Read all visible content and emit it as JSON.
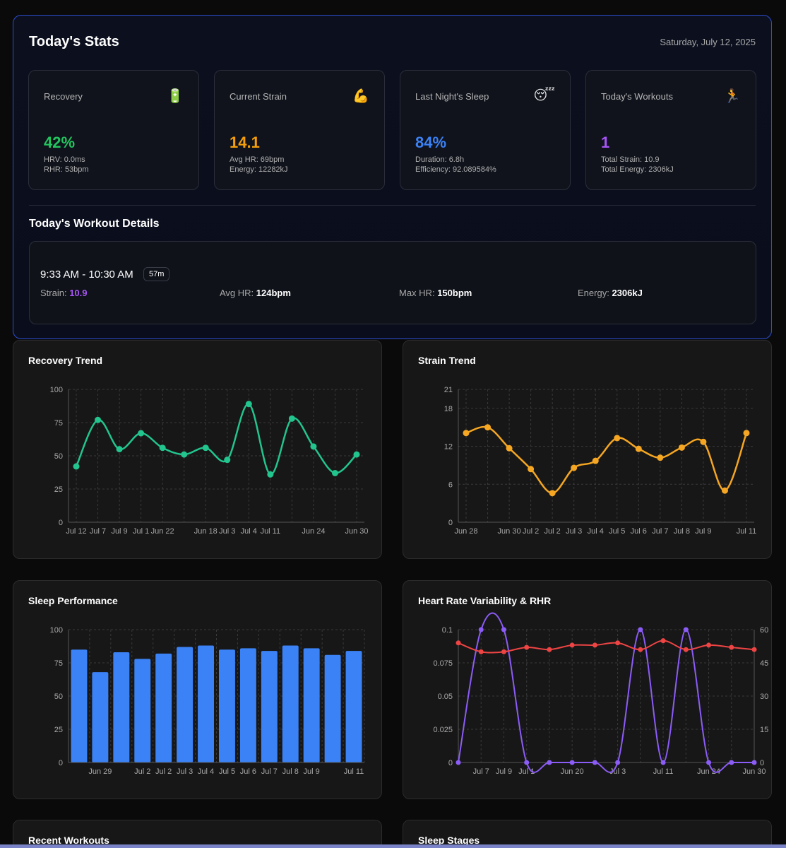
{
  "today": {
    "title": "Today's Stats",
    "date": "Saturday, July 12, 2025",
    "cards": [
      {
        "label": "Recovery",
        "icon": "🔋",
        "icon_name": "battery-icon",
        "value": "42%",
        "color": "#22c55e",
        "sub1": "HRV: 0.0ms",
        "sub2": "RHR: 53bpm"
      },
      {
        "label": "Current Strain",
        "icon": "💪",
        "icon_name": "flexed-biceps-icon",
        "value": "14.1",
        "color": "#f59e0b",
        "sub1": "Avg HR: 69bpm",
        "sub2": "Energy: 12282kJ"
      },
      {
        "label": "Last Night's Sleep",
        "icon": "😴",
        "icon_name": "sleeping-face-icon",
        "value": "84%",
        "color": "#3b82f6",
        "sub1": "Duration: 6.8h",
        "sub2": "Efficiency: 92.089584%"
      },
      {
        "label": "Today's Workouts",
        "icon": "🏃",
        "icon_name": "runner-icon",
        "value": "1",
        "color": "#a855f7",
        "sub1": "Total Strain: 10.9",
        "sub2": "Total Energy: 2306kJ"
      }
    ],
    "workout_details": {
      "title": "Today's Workout Details",
      "time": "9:33 AM - 10:30 AM",
      "duration": "57m",
      "strain_label": "Strain:",
      "strain": "10.9",
      "avg_hr_label": "Avg HR:",
      "avg_hr": "124bpm",
      "max_hr_label": "Max HR:",
      "max_hr": "150bpm",
      "energy_label": "Energy:",
      "energy": "2306kJ"
    }
  },
  "recovery_trend": {
    "title": "Recovery Trend",
    "chart_data": {
      "type": "line",
      "color": "#22c58e",
      "x": [
        "Jul 12",
        "Jul 7",
        "Jul 9",
        "Jul 1",
        "Jun 22",
        "",
        "Jun 18",
        "Jul 3",
        "Jul 4",
        "Jul 11",
        "",
        "Jun 24",
        "",
        "Jun 30"
      ],
      "values": [
        42,
        77,
        55,
        67,
        56,
        51,
        56,
        47,
        89,
        36,
        78,
        57,
        37,
        51
      ],
      "ylim": [
        0,
        100
      ],
      "yticks": [
        0,
        25,
        50,
        75,
        100
      ],
      "grid": true
    }
  },
  "strain_trend": {
    "title": "Strain Trend",
    "chart_data": {
      "type": "line",
      "color": "#f5a623",
      "x": [
        "Jun 28",
        "",
        "Jun 30",
        "Jul 2",
        "Jul 2",
        "Jul 3",
        "Jul 4",
        "Jul 5",
        "Jul 6",
        "Jul 7",
        "Jul 8",
        "Jul 9",
        "",
        "Jul 11"
      ],
      "values": [
        14.1,
        15.0,
        11.7,
        8.4,
        4.6,
        8.6,
        9.7,
        13.3,
        11.6,
        10.2,
        11.8,
        12.7,
        5.0,
        14.1
      ],
      "ylim": [
        0,
        21
      ],
      "yticks": [
        0,
        6,
        12,
        18,
        21
      ],
      "grid": true
    }
  },
  "sleep_performance": {
    "title": "Sleep Performance",
    "chart_data": {
      "type": "bar",
      "color": "#3b82f6",
      "categories": [
        "",
        "Jun 29",
        "",
        "Jul 2",
        "Jul 2",
        "Jul 3",
        "Jul 4",
        "Jul 5",
        "Jul 6",
        "Jul 7",
        "Jul 8",
        "Jul 9",
        "",
        "Jul 11"
      ],
      "values": [
        85,
        68,
        83,
        78,
        82,
        87,
        88,
        85,
        86,
        84,
        88,
        86,
        81,
        84
      ],
      "ylim": [
        0,
        100
      ],
      "yticks": [
        0,
        25,
        50,
        75,
        100
      ],
      "grid": true
    }
  },
  "hrv_rhr": {
    "title": "Heart Rate Variability & RHR",
    "chart_data": {
      "type": "line",
      "x": [
        "",
        "Jul 7",
        "Jul 9",
        "Jul 1",
        "",
        "Jun 20",
        "",
        "Jul 3",
        "",
        "Jul 11",
        "",
        "Jun 24",
        "",
        "Jun 30"
      ],
      "series": [
        {
          "color": "#8b5cf6",
          "axis": "left",
          "values": [
            0,
            0.1,
            0.1,
            0,
            0,
            0,
            0,
            0,
            0.1,
            0,
            0.1,
            0,
            0,
            0
          ]
        },
        {
          "color": "#ef4444",
          "axis": "right",
          "values": [
            54,
            50,
            50,
            52,
            51,
            53,
            53,
            54,
            51,
            55,
            51,
            53,
            52,
            51
          ]
        }
      ],
      "ylim_left": [
        0,
        0.1
      ],
      "yticks_left": [
        "0",
        "0.025",
        "0.05",
        "0.075",
        "0.1"
      ],
      "ylim_right": [
        0,
        60
      ],
      "yticks_right": [
        "0",
        "15",
        "30",
        "45",
        "60"
      ],
      "grid": true
    }
  },
  "recent_workouts": {
    "title": "Recent Workouts"
  },
  "sleep_stages": {
    "title": "Sleep Stages"
  }
}
